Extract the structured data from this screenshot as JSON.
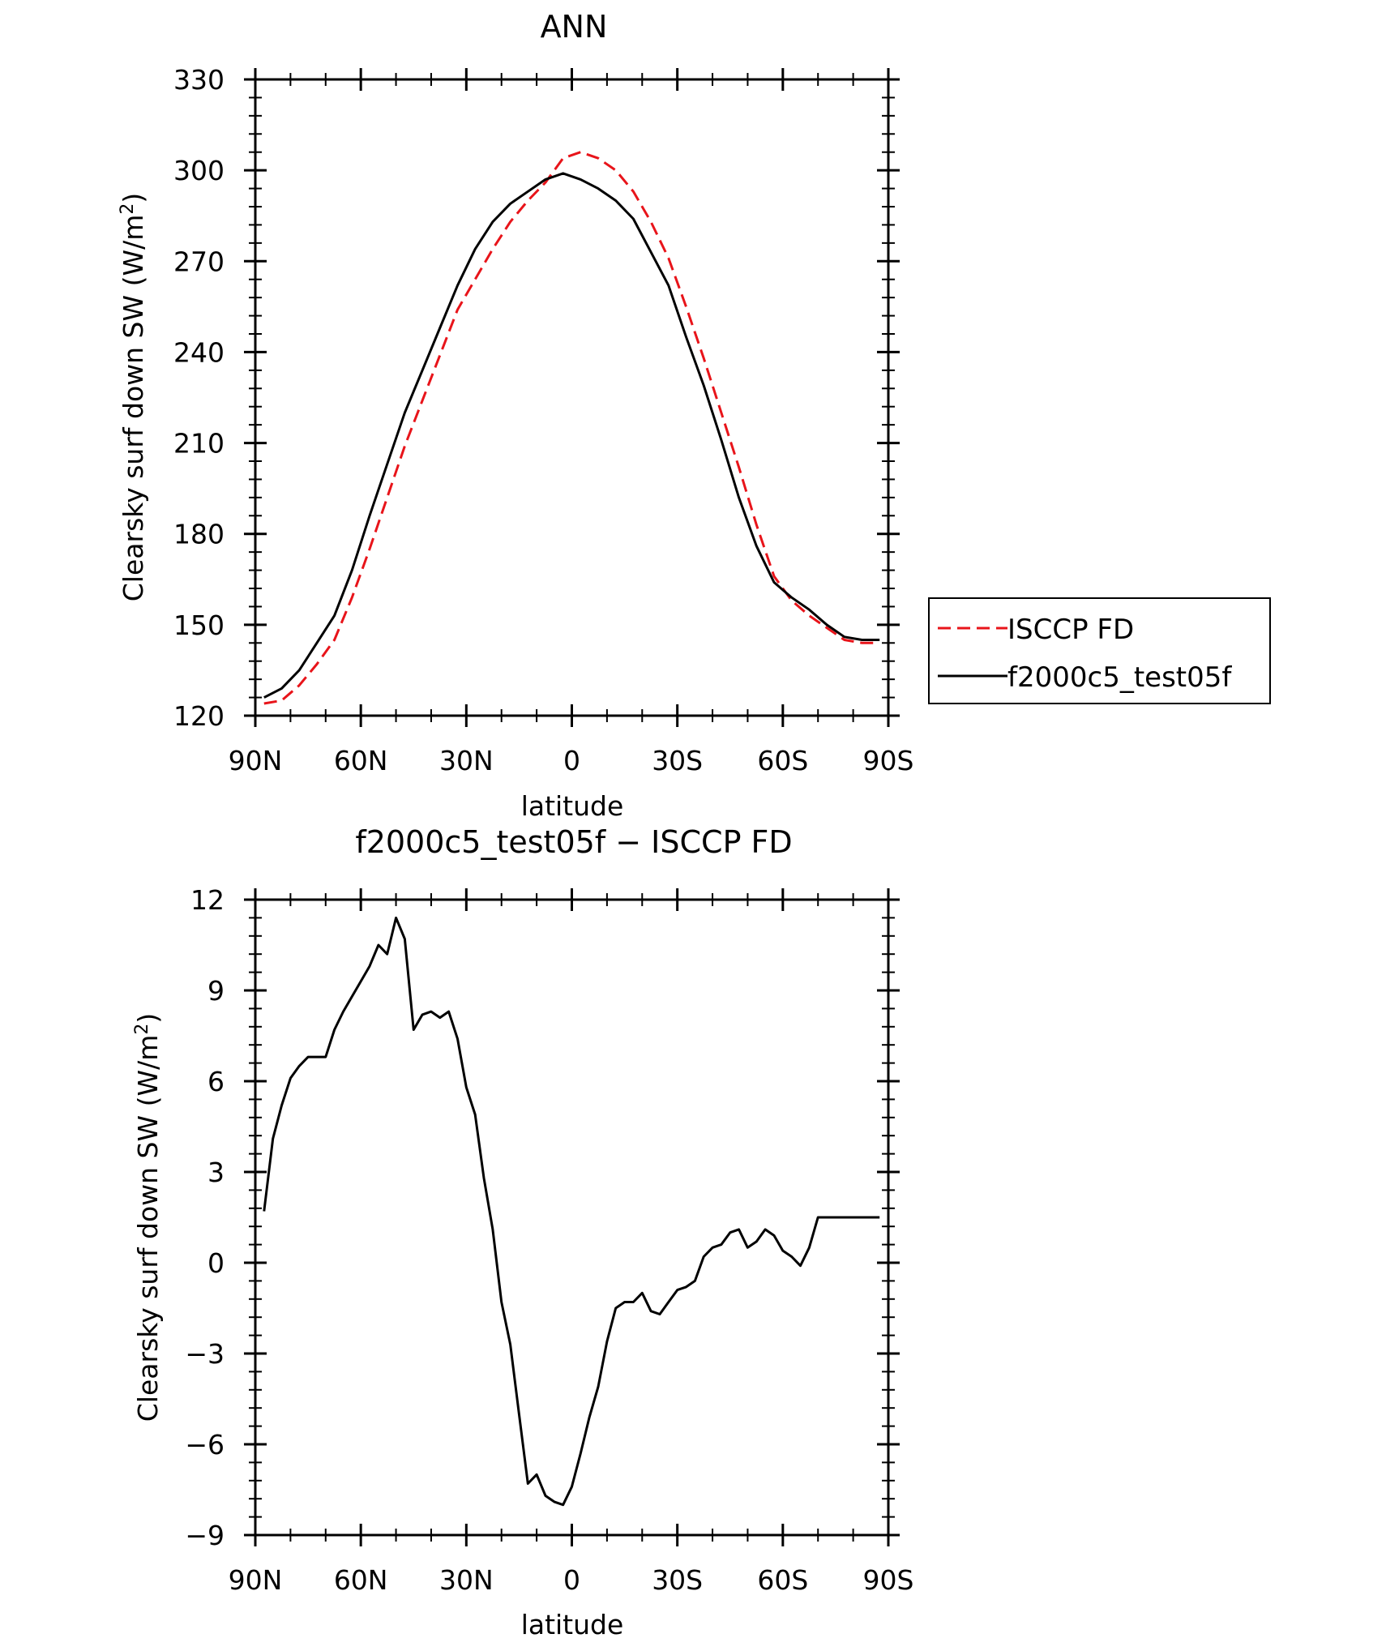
{
  "chart_data": [
    {
      "type": "line",
      "title": "ANN",
      "xlabel": "latitude",
      "ylabel": "Clearsky surf down SW (W/m",
      "ylabel_sup": "2",
      "ylabel_close": ")",
      "xlim": [
        90,
        -90
      ],
      "ylim": [
        120,
        330
      ],
      "x_tick_values": [
        90,
        60,
        30,
        0,
        -30,
        -60,
        -90
      ],
      "x_tick_labels": [
        "90N",
        "60N",
        "30N",
        "0",
        "30S",
        "60S",
        "90S"
      ],
      "y_tick_values": [
        120,
        150,
        180,
        210,
        240,
        270,
        300,
        330
      ],
      "y_tick_labels": [
        "120",
        "150",
        "180",
        "210",
        "240",
        "270",
        "300",
        "330"
      ],
      "legend": {
        "placement": "right",
        "entries": [
          "ISCCP FD",
          "f2000c5_test05f"
        ]
      },
      "series": [
        {
          "name": "ISCCP FD",
          "color": "#e8141a",
          "dash": "dashed",
          "x": [
            87.5,
            82.5,
            77.5,
            72.5,
            67.5,
            62.5,
            57.5,
            52.5,
            47.5,
            42.5,
            37.5,
            32.5,
            27.5,
            22.5,
            17.5,
            12.5,
            7.5,
            2.5,
            -2.5,
            -7.5,
            -12.5,
            -17.5,
            -22.5,
            -27.5,
            -32.5,
            -37.5,
            -42.5,
            -47.5,
            -52.5,
            -57.5,
            -62.5,
            -67.5,
            -72.5,
            -77.5,
            -82.5,
            -87.5
          ],
          "y": [
            124,
            125,
            130,
            137,
            145,
            159,
            175,
            192,
            209,
            224,
            239,
            254,
            264,
            274,
            283,
            290,
            296,
            304,
            306,
            304,
            300,
            293,
            283,
            271,
            255,
            238,
            220,
            202,
            183,
            166,
            158,
            153,
            149,
            145,
            144,
            144
          ]
        },
        {
          "name": "f2000c5_test05f",
          "color": "#000000",
          "dash": "solid",
          "x": [
            87.5,
            82.5,
            77.5,
            72.5,
            67.5,
            62.5,
            57.5,
            52.5,
            47.5,
            42.5,
            37.5,
            32.5,
            27.5,
            22.5,
            17.5,
            12.5,
            7.5,
            2.5,
            -2.5,
            -7.5,
            -12.5,
            -17.5,
            -22.5,
            -27.5,
            -32.5,
            -37.5,
            -42.5,
            -47.5,
            -52.5,
            -57.5,
            -62.5,
            -67.5,
            -72.5,
            -77.5,
            -82.5,
            -87.5
          ],
          "y": [
            126,
            129,
            135,
            144,
            153,
            168,
            186,
            203,
            220,
            234,
            248,
            262,
            274,
            283,
            289,
            293,
            297,
            299,
            297,
            294,
            290,
            284,
            273,
            262,
            245,
            229,
            211,
            192,
            176,
            164,
            159,
            155,
            150,
            146,
            145,
            145
          ]
        }
      ]
    },
    {
      "type": "line",
      "title": "f2000c5_test05f − ISCCP FD",
      "xlabel": "latitude",
      "ylabel": "Clearsky surf down SW (W/m",
      "ylabel_sup": "2",
      "ylabel_close": ")",
      "xlim": [
        90,
        -90
      ],
      "ylim": [
        -9,
        12
      ],
      "x_tick_values": [
        90,
        60,
        30,
        0,
        -30,
        -60,
        -90
      ],
      "x_tick_labels": [
        "90N",
        "60N",
        "30N",
        "0",
        "30S",
        "60S",
        "90S"
      ],
      "y_tick_values": [
        -9,
        -6,
        -3,
        0,
        3,
        6,
        9,
        12
      ],
      "y_tick_labels": [
        "−9",
        "−6",
        "−3",
        "0",
        "3",
        "6",
        "9",
        "12"
      ],
      "series": [
        {
          "color": "#000000",
          "dash": "solid",
          "x": [
            87.5,
            85,
            82.5,
            80,
            77.5,
            75,
            72.5,
            70,
            67.5,
            65,
            62.5,
            60,
            57.5,
            55,
            52.5,
            50,
            47.5,
            45,
            42.5,
            40,
            37.5,
            35,
            32.5,
            30,
            27.5,
            25,
            22.5,
            20,
            17.5,
            15,
            12.5,
            10,
            7.5,
            5,
            2.5,
            0,
            -2.5,
            -5,
            -7.5,
            -10,
            -12.5,
            -15,
            -17.5,
            -20,
            -22.5,
            -25,
            -27.5,
            -30,
            -32.5,
            -35,
            -37.5,
            -40,
            -42.5,
            -45,
            -47.5,
            -50,
            -52.5,
            -55,
            -57.5,
            -60,
            -62.5,
            -65,
            -67.5,
            -70,
            -72.5,
            -75,
            -77.5,
            -80,
            -82.5,
            -85,
            -87.5
          ],
          "y": [
            1.7,
            4.1,
            5.2,
            6.1,
            6.5,
            6.8,
            6.8,
            6.8,
            7.7,
            8.3,
            8.8,
            9.3,
            9.8,
            10.5,
            10.2,
            11.4,
            10.7,
            7.7,
            8.2,
            8.3,
            8.1,
            8.3,
            7.4,
            5.8,
            4.9,
            2.8,
            1.1,
            -1.3,
            -2.7,
            -5.0,
            -7.3,
            -7.0,
            -7.7,
            -7.9,
            -8.0,
            -7.4,
            -6.3,
            -5.1,
            -4.1,
            -2.6,
            -1.5,
            -1.3,
            -1.3,
            -1.0,
            -1.6,
            -1.7,
            -1.3,
            -0.9,
            -0.8,
            -0.6,
            0.2,
            0.5,
            0.6,
            1.0,
            1.1,
            0.5,
            0.7,
            1.1,
            0.9,
            0.4,
            0.2,
            -0.1,
            0.5,
            1.5,
            1.5,
            1.5,
            1.5,
            1.5,
            1.5,
            1.5,
            1.5
          ]
        }
      ]
    }
  ]
}
